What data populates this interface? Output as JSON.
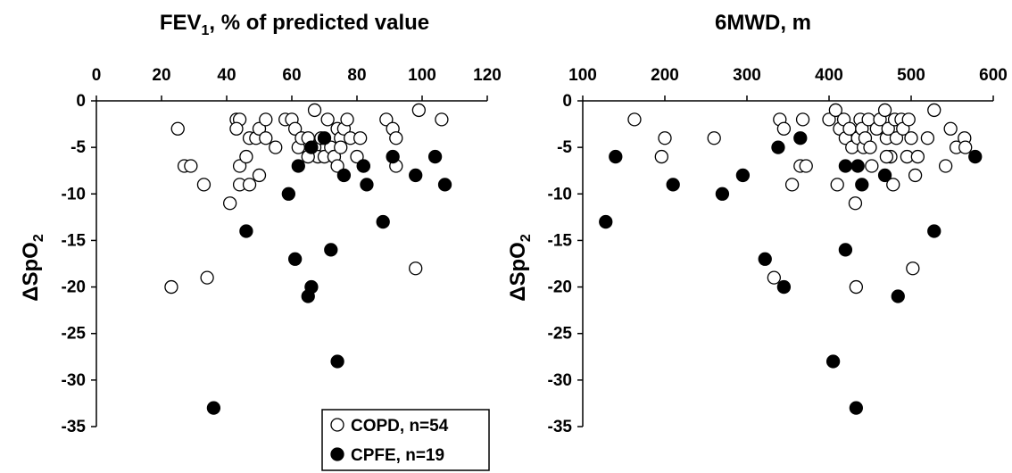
{
  "chart_data": [
    {
      "type": "scatter",
      "title": "FEV",
      "title_subscript": "1",
      "title_rest": ", % of predicted value",
      "ylabel": "ΔSpO",
      "ylabel_subscript": "2",
      "x_axis_position": "top",
      "xlim": [
        0,
        120
      ],
      "ylim": [
        -35,
        0
      ],
      "xticks": [
        0,
        20,
        40,
        60,
        80,
        100,
        120
      ],
      "yticks": [
        0,
        -5,
        -10,
        -15,
        -20,
        -25,
        -30,
        -35
      ],
      "series": [
        {
          "name": "COPD, n=54",
          "marker": "open-circle",
          "points": [
            [
              25,
              -3
            ],
            [
              27,
              -7
            ],
            [
              29,
              -7
            ],
            [
              23,
              -20
            ],
            [
              33,
              -9
            ],
            [
              34,
              -19
            ],
            [
              41,
              -11
            ],
            [
              43,
              -2
            ],
            [
              44,
              -2
            ],
            [
              43,
              -3
            ],
            [
              44,
              -7
            ],
            [
              44,
              -9
            ],
            [
              46,
              -6
            ],
            [
              47,
              -4
            ],
            [
              47,
              -9
            ],
            [
              49,
              -4
            ],
            [
              50,
              -3
            ],
            [
              50,
              -8
            ],
            [
              52,
              -2
            ],
            [
              52,
              -4
            ],
            [
              58,
              -2
            ],
            [
              60,
              -2
            ],
            [
              61,
              -3
            ],
            [
              62,
              -5
            ],
            [
              63,
              -4
            ],
            [
              65,
              -4
            ],
            [
              67,
              -1
            ],
            [
              67,
              -5
            ],
            [
              68,
              -6
            ],
            [
              69,
              -4
            ],
            [
              70,
              -6
            ],
            [
              71,
              -2
            ],
            [
              72,
              -5
            ],
            [
              73,
              -6
            ],
            [
              73,
              -6
            ],
            [
              74,
              -7
            ],
            [
              74,
              -3
            ],
            [
              75,
              -4
            ],
            [
              76,
              -3
            ],
            [
              77,
              -2
            ],
            [
              78,
              -4
            ],
            [
              80,
              -6
            ],
            [
              81,
              -4
            ],
            [
              82,
              -7
            ],
            [
              89,
              -2
            ],
            [
              91,
              -3
            ],
            [
              92,
              -4
            ],
            [
              92,
              -7
            ],
            [
              99,
              -1
            ],
            [
              98,
              -18
            ],
            [
              106,
              -2
            ],
            [
              55,
              -5
            ],
            [
              65,
              -6
            ],
            [
              75,
              -5
            ]
          ]
        },
        {
          "name": "CPFE, n=19",
          "marker": "filled-circle",
          "points": [
            [
              36,
              -33
            ],
            [
              46,
              -14
            ],
            [
              59,
              -10
            ],
            [
              61,
              -17
            ],
            [
              62,
              -7
            ],
            [
              65,
              -21
            ],
            [
              66,
              -20
            ],
            [
              66,
              -5
            ],
            [
              70,
              -4
            ],
            [
              72,
              -16
            ],
            [
              74,
              -28
            ],
            [
              76,
              -8
            ],
            [
              82,
              -7
            ],
            [
              83,
              -9
            ],
            [
              88,
              -13
            ],
            [
              91,
              -6
            ],
            [
              98,
              -8
            ],
            [
              104,
              -6
            ],
            [
              107,
              -9
            ]
          ]
        }
      ]
    },
    {
      "type": "scatter",
      "title": "6MWD, m",
      "ylabel": "ΔSpO",
      "ylabel_subscript": "2",
      "x_axis_position": "top",
      "xlim": [
        100,
        600
      ],
      "ylim": [
        -35,
        0
      ],
      "xticks": [
        100,
        200,
        300,
        400,
        500,
        600
      ],
      "yticks": [
        0,
        -5,
        -10,
        -15,
        -20,
        -25,
        -30,
        -35
      ],
      "series": [
        {
          "name": "COPD, n=54",
          "marker": "open-circle",
          "points": [
            [
              163,
              -2
            ],
            [
              196,
              -6
            ],
            [
              200,
              -4
            ],
            [
              260,
              -4
            ],
            [
              333,
              -19
            ],
            [
              340,
              -2
            ],
            [
              345,
              -3
            ],
            [
              355,
              -9
            ],
            [
              365,
              -7
            ],
            [
              368,
              -2
            ],
            [
              372,
              -7
            ],
            [
              400,
              -2
            ],
            [
              408,
              -1
            ],
            [
              410,
              -9
            ],
            [
              413,
              -3
            ],
            [
              418,
              -2
            ],
            [
              420,
              -4
            ],
            [
              425,
              -3
            ],
            [
              428,
              -5
            ],
            [
              432,
              -11
            ],
            [
              433,
              -20
            ],
            [
              435,
              -4
            ],
            [
              438,
              -2
            ],
            [
              440,
              -3
            ],
            [
              442,
              -5
            ],
            [
              444,
              -4
            ],
            [
              448,
              -2
            ],
            [
              450,
              -5
            ],
            [
              452,
              -7
            ],
            [
              458,
              -3
            ],
            [
              462,
              -2
            ],
            [
              468,
              -1
            ],
            [
              470,
              -4
            ],
            [
              472,
              -3
            ],
            [
              475,
              -6
            ],
            [
              478,
              -9
            ],
            [
              480,
              -2
            ],
            [
              482,
              -4
            ],
            [
              488,
              -2
            ],
            [
              490,
              -3
            ],
            [
              495,
              -6
            ],
            [
              497,
              -2
            ],
            [
              500,
              -4
            ],
            [
              502,
              -18
            ],
            [
              505,
              -8
            ],
            [
              508,
              -6
            ],
            [
              520,
              -4
            ],
            [
              528,
              -1
            ],
            [
              542,
              -7
            ],
            [
              548,
              -3
            ],
            [
              555,
              -5
            ],
            [
              565,
              -4
            ],
            [
              566,
              -5
            ],
            [
              470,
              -6
            ]
          ]
        },
        {
          "name": "CPFE, n=19",
          "marker": "filled-circle",
          "points": [
            [
              128,
              -13
            ],
            [
              140,
              -6
            ],
            [
              210,
              -9
            ],
            [
              270,
              -10
            ],
            [
              295,
              -8
            ],
            [
              322,
              -17
            ],
            [
              338,
              -5
            ],
            [
              345,
              -20
            ],
            [
              365,
              -4
            ],
            [
              405,
              -28
            ],
            [
              420,
              -7
            ],
            [
              420,
              -16
            ],
            [
              433,
              -33
            ],
            [
              435,
              -7
            ],
            [
              440,
              -9
            ],
            [
              468,
              -8
            ],
            [
              484,
              -21
            ],
            [
              528,
              -14
            ],
            [
              578,
              -6
            ]
          ]
        }
      ]
    }
  ],
  "legend": {
    "placement": "bottom-center",
    "items": [
      {
        "label": "COPD, n=54",
        "marker": "open-circle"
      },
      {
        "label": "CPFE, n=19",
        "marker": "filled-circle"
      }
    ]
  }
}
